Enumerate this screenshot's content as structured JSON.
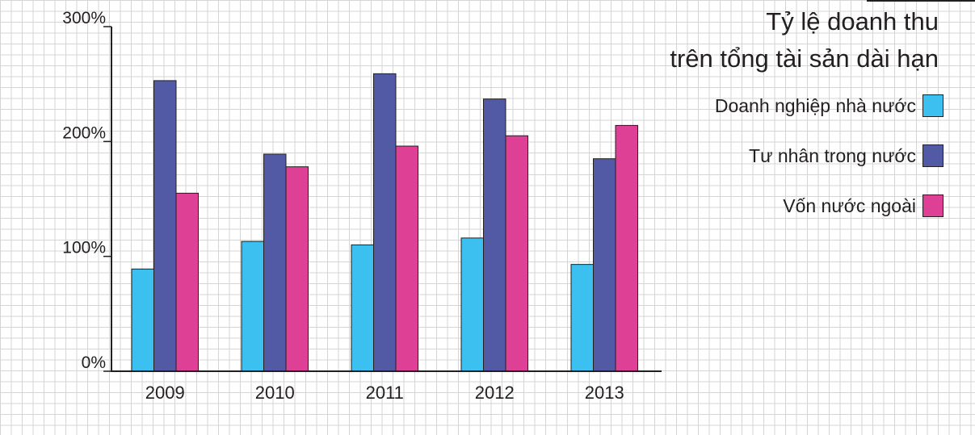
{
  "chart_data": {
    "type": "bar",
    "title_lines": [
      "Tỷ lệ doanh thu",
      "trên tổng tài sản dài hạn"
    ],
    "categories": [
      "2009",
      "2010",
      "2011",
      "2012",
      "2013"
    ],
    "series": [
      {
        "name": "Doanh nghiệp nhà nước",
        "color": "#3cc0ef",
        "values": [
          89,
          113,
          110,
          116,
          93
        ]
      },
      {
        "name": "Tư nhân trong nước",
        "color": "#525aa6",
        "values": [
          253,
          189,
          259,
          237,
          185
        ]
      },
      {
        "name": "Vốn nước ngoài",
        "color": "#de4095",
        "values": [
          155,
          178,
          196,
          205,
          214
        ]
      }
    ],
    "y_ticks": [
      {
        "value": 0,
        "label": "0%"
      },
      {
        "value": 100,
        "label": "100%"
      },
      {
        "value": 200,
        "label": "200%"
      },
      {
        "value": 300,
        "label": "300%"
      }
    ],
    "ylim": [
      0,
      300
    ],
    "grid": true,
    "legend_position": "right"
  }
}
